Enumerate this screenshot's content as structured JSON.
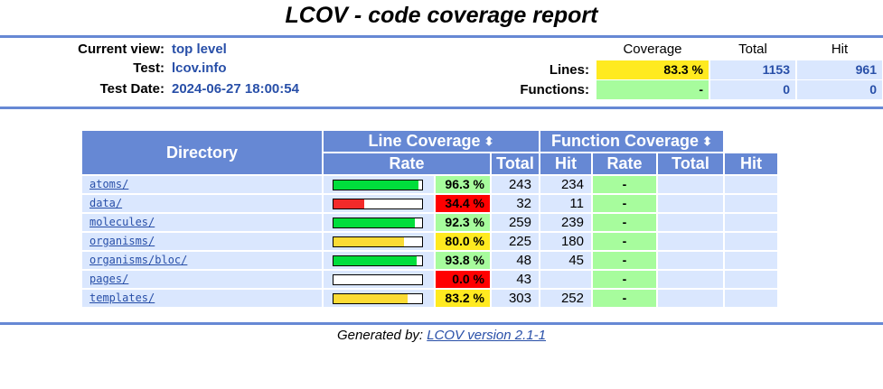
{
  "title": "LCOV - code coverage report",
  "info": {
    "current_view_label": "Current view:",
    "current_view_value": "top level",
    "test_label": "Test:",
    "test_value": "lcov.info",
    "test_date_label": "Test Date:",
    "test_date_value": "2024-06-27 18:00:54"
  },
  "summary": {
    "headers": {
      "coverage": "Coverage",
      "total": "Total",
      "hit": "Hit"
    },
    "lines": {
      "label": "Lines:",
      "coverage": "83.3 %",
      "total": "1153",
      "hit": "961"
    },
    "functions": {
      "label": "Functions:",
      "coverage": "-",
      "total": "0",
      "hit": "0"
    }
  },
  "table": {
    "headers": {
      "directory": "Directory",
      "line_coverage": "Line Coverage",
      "function_coverage": "Function Coverage",
      "rate": "Rate",
      "total": "Total",
      "hit": "Hit",
      "sort_icon": "sort-arrows-icon"
    },
    "rows": [
      {
        "dir": "atoms/",
        "rate": 0.963,
        "pct": "96.3 %",
        "level": "green",
        "total": "243",
        "hit": "234",
        "fn_rate": "-"
      },
      {
        "dir": "data/",
        "rate": 0.344,
        "pct": "34.4 %",
        "level": "red",
        "total": "32",
        "hit": "11",
        "fn_rate": "-"
      },
      {
        "dir": "molecules/",
        "rate": 0.923,
        "pct": "92.3 %",
        "level": "green",
        "total": "259",
        "hit": "239",
        "fn_rate": "-"
      },
      {
        "dir": "organisms/",
        "rate": 0.8,
        "pct": "80.0 %",
        "level": "yellow",
        "total": "225",
        "hit": "180",
        "fn_rate": "-"
      },
      {
        "dir": "organisms/bloc/",
        "rate": 0.938,
        "pct": "93.8 %",
        "level": "green",
        "total": "48",
        "hit": "45",
        "fn_rate": "-"
      },
      {
        "dir": "pages/",
        "rate": 0.0,
        "pct": "0.0 %",
        "level": "red",
        "total": "43",
        "hit": "",
        "fn_rate": "-"
      },
      {
        "dir": "templates/",
        "rate": 0.832,
        "pct": "83.2 %",
        "level": "yellow",
        "total": "303",
        "hit": "252",
        "fn_rate": "-"
      }
    ]
  },
  "colors": {
    "header_blue": "#6688d4",
    "cell_blue": "#dae7fe",
    "link_blue": "#284fa8",
    "high": "#a7fc9d",
    "medium": "#ffea20",
    "low": "#ff0000",
    "bar_high": "#00de3c",
    "bar_medium": "#fbdb36",
    "bar_low": "#f32a2a"
  },
  "footer": {
    "prefix": "Generated by:",
    "link_text": "LCOV version 2.1-1"
  }
}
